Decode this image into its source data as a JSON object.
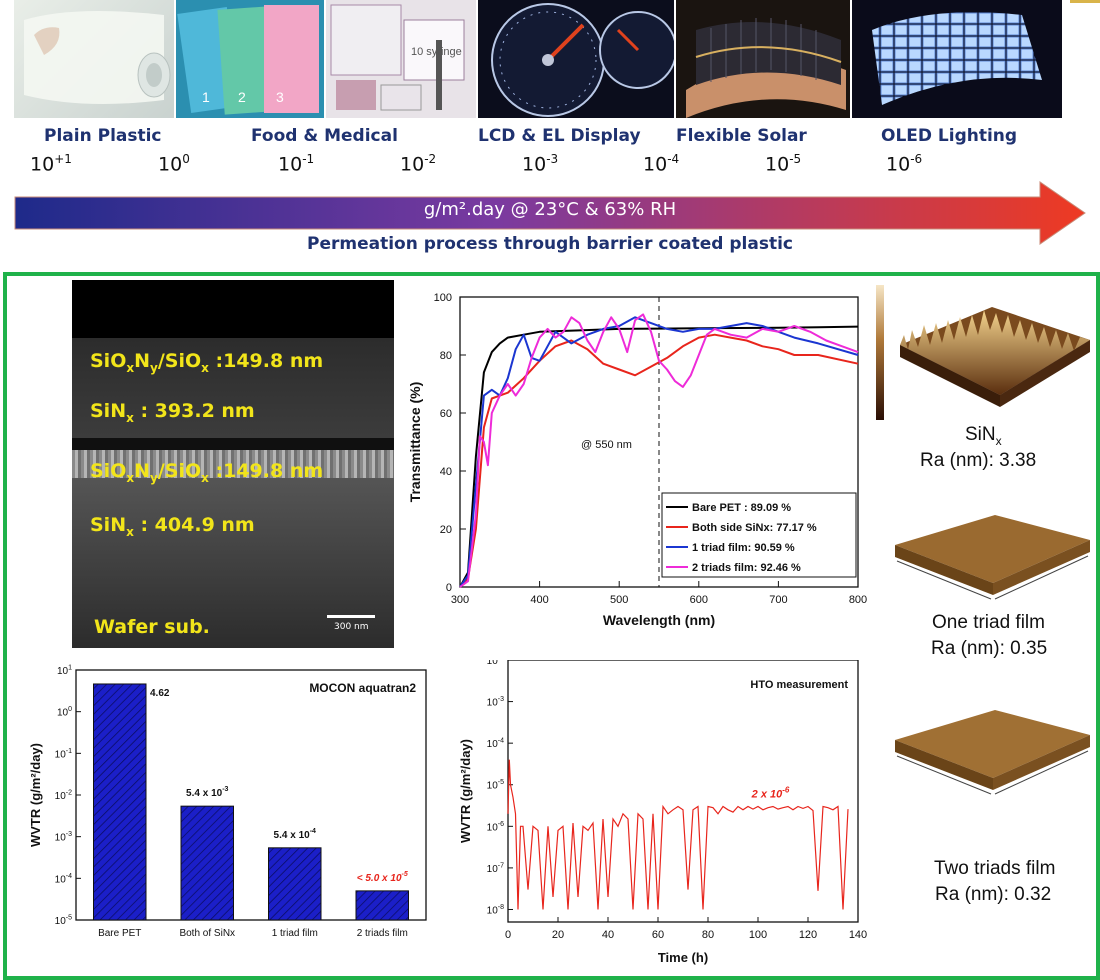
{
  "banner": {
    "categories": [
      {
        "label": "Plain Plastic"
      },
      {
        "label": "Food & Medical"
      },
      {
        "label": "LCD & EL Display"
      },
      {
        "label": "Flexible Solar"
      },
      {
        "label": "OLED Lighting"
      }
    ],
    "exponents": [
      {
        "base": "10",
        "exp": "+1"
      },
      {
        "base": "10",
        "exp": "0"
      },
      {
        "base": "10",
        "exp": "-1"
      },
      {
        "base": "10",
        "exp": "-2"
      },
      {
        "base": "10",
        "exp": "-3"
      },
      {
        "base": "10",
        "exp": "-4"
      },
      {
        "base": "10",
        "exp": "-5"
      },
      {
        "base": "10",
        "exp": "-6"
      }
    ],
    "arrow_text": "g/m².day @ 23°C & 63% RH",
    "subtitle": "Permeation process through barrier coated plastic",
    "package_numbers": [
      "1",
      "2",
      "3"
    ],
    "book_text": "10 syringe"
  },
  "sem": {
    "layer1": "SiOxNy/SiOx :149.8 nm",
    "layer2": "SiNx : 393.2 nm",
    "layer3": "SiOxNy/SiOx :149.8 nm",
    "layer4": "SiNx : 404.9 nm",
    "substrate": "Wafer sub.",
    "scale": "300 nm"
  },
  "afm": [
    {
      "name": "SiNx",
      "ra": "Ra (nm): 3.38"
    },
    {
      "name": "One triad film",
      "ra": "Ra (nm): 0.35"
    },
    {
      "name": "Two triads film",
      "ra": "Ra (nm): 0.32"
    }
  ],
  "colors": {
    "green_frame": "#1fb24a",
    "navy_text": "#1f3270",
    "bar_fill": "#1b1fc8",
    "sem_text": "#f2e51a"
  },
  "chart_data": [
    {
      "type": "line",
      "id": "transmittance",
      "xlabel": "Wavelength (nm)",
      "ylabel": "Transmittance (%)",
      "xlim": [
        300,
        800
      ],
      "ylim": [
        0,
        100
      ],
      "xticks": [
        "300",
        "400",
        "500",
        "600",
        "700",
        "800"
      ],
      "yticks": [
        "0",
        "20",
        "40",
        "60",
        "80",
        "100"
      ],
      "annotation": "@ 550 nm",
      "marker_x": 550,
      "series": [
        {
          "name": "Bare PET : 89.09 %",
          "color": "#000000",
          "x": [
            300,
            310,
            320,
            330,
            340,
            350,
            360,
            380,
            400,
            450,
            500,
            550,
            600,
            650,
            700,
            750,
            800
          ],
          "y": [
            0,
            5,
            45,
            74,
            81,
            84,
            86,
            87,
            88,
            88.5,
            89,
            89.1,
            89.2,
            89.3,
            89.4,
            89.6,
            89.8
          ]
        },
        {
          "name": "Both side SiNx: 77.17 %",
          "color": "#e8251c",
          "x": [
            300,
            310,
            320,
            330,
            340,
            350,
            360,
            380,
            400,
            420,
            440,
            460,
            480,
            500,
            520,
            540,
            560,
            580,
            600,
            620,
            640,
            660,
            680,
            700,
            720,
            750,
            800
          ],
          "y": [
            0,
            3,
            20,
            55,
            65,
            66,
            67,
            72,
            78,
            83,
            85,
            82,
            77,
            75,
            73,
            76,
            79,
            83,
            86,
            87,
            86,
            85,
            83,
            82,
            80,
            80,
            77
          ]
        },
        {
          "name": "1 triad film: 90.59 %",
          "color": "#1b36d1",
          "x": [
            300,
            310,
            320,
            330,
            340,
            350,
            360,
            370,
            380,
            390,
            400,
            420,
            440,
            460,
            480,
            500,
            520,
            540,
            560,
            580,
            600,
            620,
            640,
            660,
            680,
            700,
            720,
            750,
            800
          ],
          "y": [
            0,
            4,
            35,
            66,
            68,
            66,
            72,
            82,
            87,
            79,
            78,
            88,
            84,
            87,
            89,
            90,
            93,
            91,
            89,
            88,
            89,
            89,
            90,
            91,
            90,
            88,
            86,
            84,
            80
          ]
        },
        {
          "name": "2 triads film: 92.46 %",
          "color": "#ee2bd8",
          "x": [
            300,
            310,
            320,
            325,
            330,
            335,
            340,
            350,
            360,
            370,
            380,
            390,
            400,
            410,
            420,
            430,
            440,
            450,
            460,
            470,
            480,
            490,
            500,
            510,
            520,
            530,
            540,
            550,
            560,
            570,
            580,
            590,
            600,
            610,
            620,
            640,
            660,
            680,
            700,
            720,
            740,
            760,
            780,
            800
          ],
          "y": [
            0,
            2,
            25,
            52,
            50,
            42,
            60,
            66,
            70,
            66,
            70,
            79,
            86,
            89,
            86,
            88,
            93,
            91,
            85,
            81,
            88,
            93,
            89,
            81,
            92,
            94,
            88,
            78,
            75,
            71,
            69,
            73,
            80,
            87,
            89,
            87,
            86,
            89,
            88,
            90,
            88,
            85,
            83,
            81
          ]
        }
      ]
    },
    {
      "type": "bar",
      "id": "wvtr_mocon",
      "title": "MOCON aquatran2",
      "ylabel": "WVTR (g/m²/day)",
      "yscale": "log",
      "ylim": [
        1e-05,
        10
      ],
      "categories": [
        "Bare PET",
        "Both of SiNx",
        "1 triad  film",
        "2 triads  film"
      ],
      "values": [
        4.62,
        0.0054,
        0.00054,
        5e-05
      ],
      "data_labels": [
        "4.62",
        "5.4 x 10-3",
        "5.4 x 10-4",
        "< 5.0 x 10-5"
      ],
      "data_label_colors": [
        "#111111",
        "#111111",
        "#111111",
        "#e8251c"
      ],
      "ytick_exponents": [
        "1",
        "0",
        "-1",
        "-2",
        "-3",
        "-4",
        "-5"
      ]
    },
    {
      "type": "line",
      "id": "hto",
      "title": "HTO measurement",
      "xlabel": "Time (h)",
      "ylabel": "WVTR (g/m²/day)",
      "yscale": "log",
      "xlim": [
        0,
        140
      ],
      "ylim": [
        5e-09,
        0.01
      ],
      "xticks": [
        "0",
        "20",
        "40",
        "60",
        "80",
        "100",
        "120",
        "140"
      ],
      "ytick_exponents": [
        "-2",
        "-3",
        "-4",
        "-5",
        "-6",
        "-7",
        "-8"
      ],
      "annotation": "2 x 10-6",
      "series": [
        {
          "name": "",
          "color": "#e8251c",
          "x": [
            0,
            0.5,
            1,
            2,
            3,
            4,
            5,
            6,
            8,
            10,
            12,
            14,
            16,
            18,
            20,
            22,
            24,
            26,
            28,
            30,
            32,
            34,
            36,
            38,
            40,
            42,
            44,
            46,
            48,
            50,
            52,
            54,
            56,
            58,
            60,
            62,
            64,
            66,
            68,
            70,
            72,
            74,
            76,
            78,
            80,
            82,
            84,
            86,
            88,
            90,
            92,
            94,
            96,
            98,
            100,
            102,
            104,
            106,
            108,
            110,
            112,
            114,
            116,
            118,
            120,
            122,
            124,
            126,
            128,
            130,
            132,
            134,
            136
          ],
          "y": [
            2e-06,
            4e-05,
            1e-05,
            5e-06,
            2e-06,
            1e-08,
            1e-06,
            1e-06,
            3e-08,
            1e-06,
            8e-07,
            1e-08,
            1e-06,
            2e-08,
            8e-07,
            1e-06,
            1e-08,
            1.2e-06,
            2e-08,
            1e-06,
            8e-07,
            1.2e-06,
            1e-08,
            1.5e-06,
            2e-08,
            1.5e-06,
            1e-06,
            2e-06,
            1.5e-06,
            1e-08,
            2e-06,
            1.5e-06,
            1e-08,
            2e-06,
            1e-08,
            3e-06,
            2e-06,
            2.5e-06,
            3e-06,
            2.5e-06,
            3e-08,
            2.5e-06,
            3e-06,
            1e-08,
            3e-06,
            2.8e-06,
            2e-06,
            3e-06,
            2.5e-06,
            2.2e-06,
            3e-06,
            2.5e-06,
            3e-06,
            2.6e-06,
            3e-06,
            2.5e-06,
            2.8e-06,
            3e-06,
            2.6e-06,
            2.8e-06,
            3e-06,
            2.5e-06,
            3e-06,
            2.7e-06,
            3e-06,
            2.4e-06,
            2.8e-08,
            3e-06,
            2.8e-06,
            2.5e-06,
            3e-06,
            1e-08,
            2.6e-06
          ]
        }
      ]
    }
  ]
}
